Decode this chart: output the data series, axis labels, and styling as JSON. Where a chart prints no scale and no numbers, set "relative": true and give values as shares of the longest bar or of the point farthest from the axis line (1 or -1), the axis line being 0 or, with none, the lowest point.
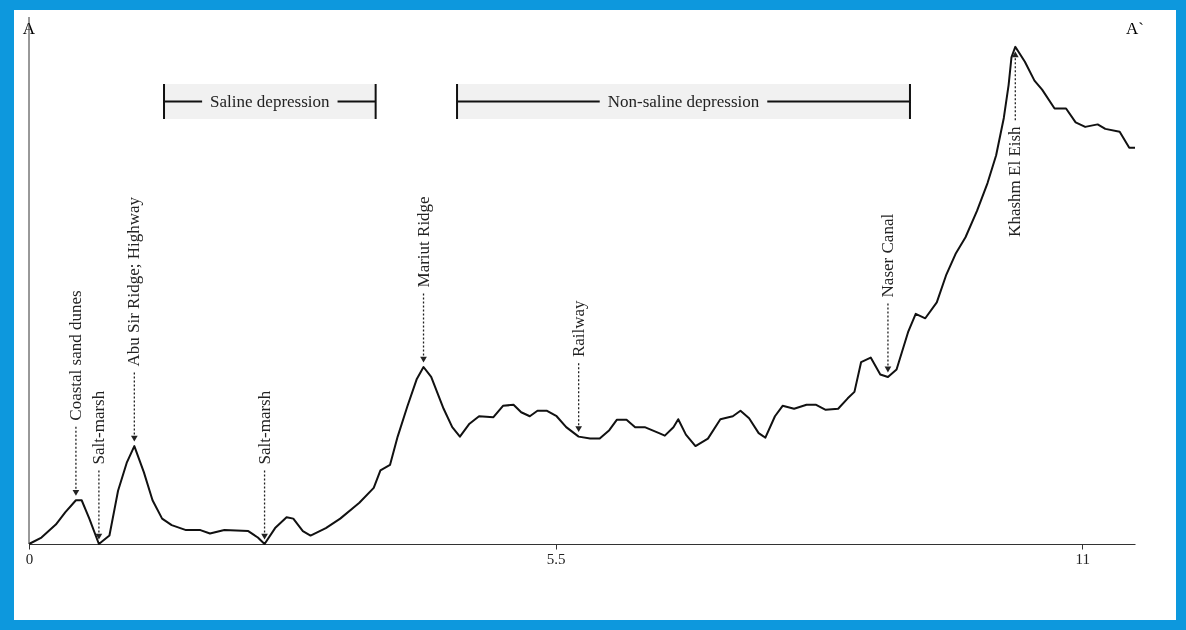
{
  "chart_data": {
    "type": "line",
    "relative": true,
    "color": "#111111",
    "x": [
      0,
      0.13,
      0.28,
      0.38,
      0.49,
      0.55,
      0.63,
      0.73,
      0.84,
      0.93,
      1.02,
      1.1,
      1.2,
      1.29,
      1.39,
      1.49,
      1.64,
      1.79,
      1.89,
      2.04,
      2.29,
      2.39,
      2.46,
      2.57,
      2.69,
      2.76,
      2.86,
      2.94,
      3.1,
      3.25,
      3.45,
      3.6,
      3.67,
      3.77,
      3.85,
      3.95,
      4.05,
      4.12,
      4.2,
      4.33,
      4.42,
      4.5,
      4.6,
      4.7,
      4.85,
      4.95,
      5.06,
      5.14,
      5.23,
      5.31,
      5.41,
      5.51,
      5.61,
      5.74,
      5.86,
      5.96,
      6.06,
      6.14,
      6.24,
      6.33,
      6.43,
      6.58,
      6.64,
      6.73,
      6.78,
      6.86,
      6.96,
      7.09,
      7.22,
      7.35,
      7.43,
      7.52,
      7.62,
      7.69,
      7.79,
      7.87,
      7.99,
      8.12,
      8.22,
      8.32,
      8.45,
      8.55,
      8.62,
      8.69,
      8.79,
      8.89,
      8.97,
      9.06,
      9.18,
      9.26,
      9.36,
      9.48,
      9.58,
      9.68,
      9.78,
      9.9,
      10.01,
      10.1,
      10.18,
      10.23,
      10.26,
      10.3,
      10.4,
      10.5,
      10.58,
      10.71,
      10.83,
      10.93,
      11.03,
      11.16,
      11.24,
      11.39,
      11.49,
      11.55
    ],
    "values": [
      0,
      0.013,
      0.039,
      0.064,
      0.088,
      0.088,
      0.051,
      0,
      0.017,
      0.107,
      0.163,
      0.197,
      0.144,
      0.088,
      0.051,
      0.038,
      0.028,
      0.028,
      0.021,
      0.028,
      0.026,
      0.013,
      0,
      0.032,
      0.054,
      0.051,
      0.026,
      0.017,
      0.032,
      0.051,
      0.083,
      0.113,
      0.148,
      0.159,
      0.216,
      0.276,
      0.332,
      0.356,
      0.336,
      0.272,
      0.235,
      0.216,
      0.242,
      0.257,
      0.255,
      0.278,
      0.28,
      0.265,
      0.257,
      0.268,
      0.268,
      0.257,
      0.235,
      0.216,
      0.212,
      0.212,
      0.229,
      0.25,
      0.25,
      0.235,
      0.235,
      0.223,
      0.218,
      0.235,
      0.251,
      0.22,
      0.197,
      0.212,
      0.251,
      0.257,
      0.268,
      0.253,
      0.223,
      0.214,
      0.257,
      0.278,
      0.272,
      0.28,
      0.28,
      0.27,
      0.272,
      0.293,
      0.306,
      0.366,
      0.375,
      0.341,
      0.336,
      0.351,
      0.426,
      0.463,
      0.454,
      0.486,
      0.542,
      0.585,
      0.617,
      0.67,
      0.726,
      0.782,
      0.857,
      0.923,
      0.979,
      1,
      0.97,
      0.932,
      0.914,
      0.876,
      0.876,
      0.848,
      0.839,
      0.844,
      0.835,
      0.829,
      0.797,
      0.797
    ],
    "xlim": [
      0,
      11.55
    ],
    "xticks": [
      0,
      5.5,
      11
    ],
    "grid": false,
    "line_style": "solid",
    "annotations": [
      "A",
      "A`",
      {
        "text": "Coastal sand dunes",
        "x": 0.49,
        "y": 0.088
      },
      {
        "text": "Salt-marsh",
        "x": 0.73,
        "y": 0
      },
      {
        "text": "Abu Sir Ridge; Highway",
        "x": 1.1,
        "y": 0.197
      },
      {
        "text": "Salt-marsh",
        "x": 2.46,
        "y": 0
      },
      {
        "text": "Mariut Ridge",
        "x": 4.12,
        "y": 0.356
      },
      {
        "text": "Railway",
        "x": 5.74,
        "y": 0.216
      },
      {
        "text": "Naser Canal",
        "x": 8.97,
        "y": 0.336
      },
      {
        "text": "Khashm El Eish",
        "x": 10.3,
        "y": 1
      }
    ],
    "bands": [
      {
        "axis": "x",
        "from": 1.41,
        "to": 3.62,
        "label": "Saline depression"
      },
      {
        "axis": "x",
        "from": 4.47,
        "to": 9.2,
        "label": "Non-saline depression"
      }
    ]
  }
}
